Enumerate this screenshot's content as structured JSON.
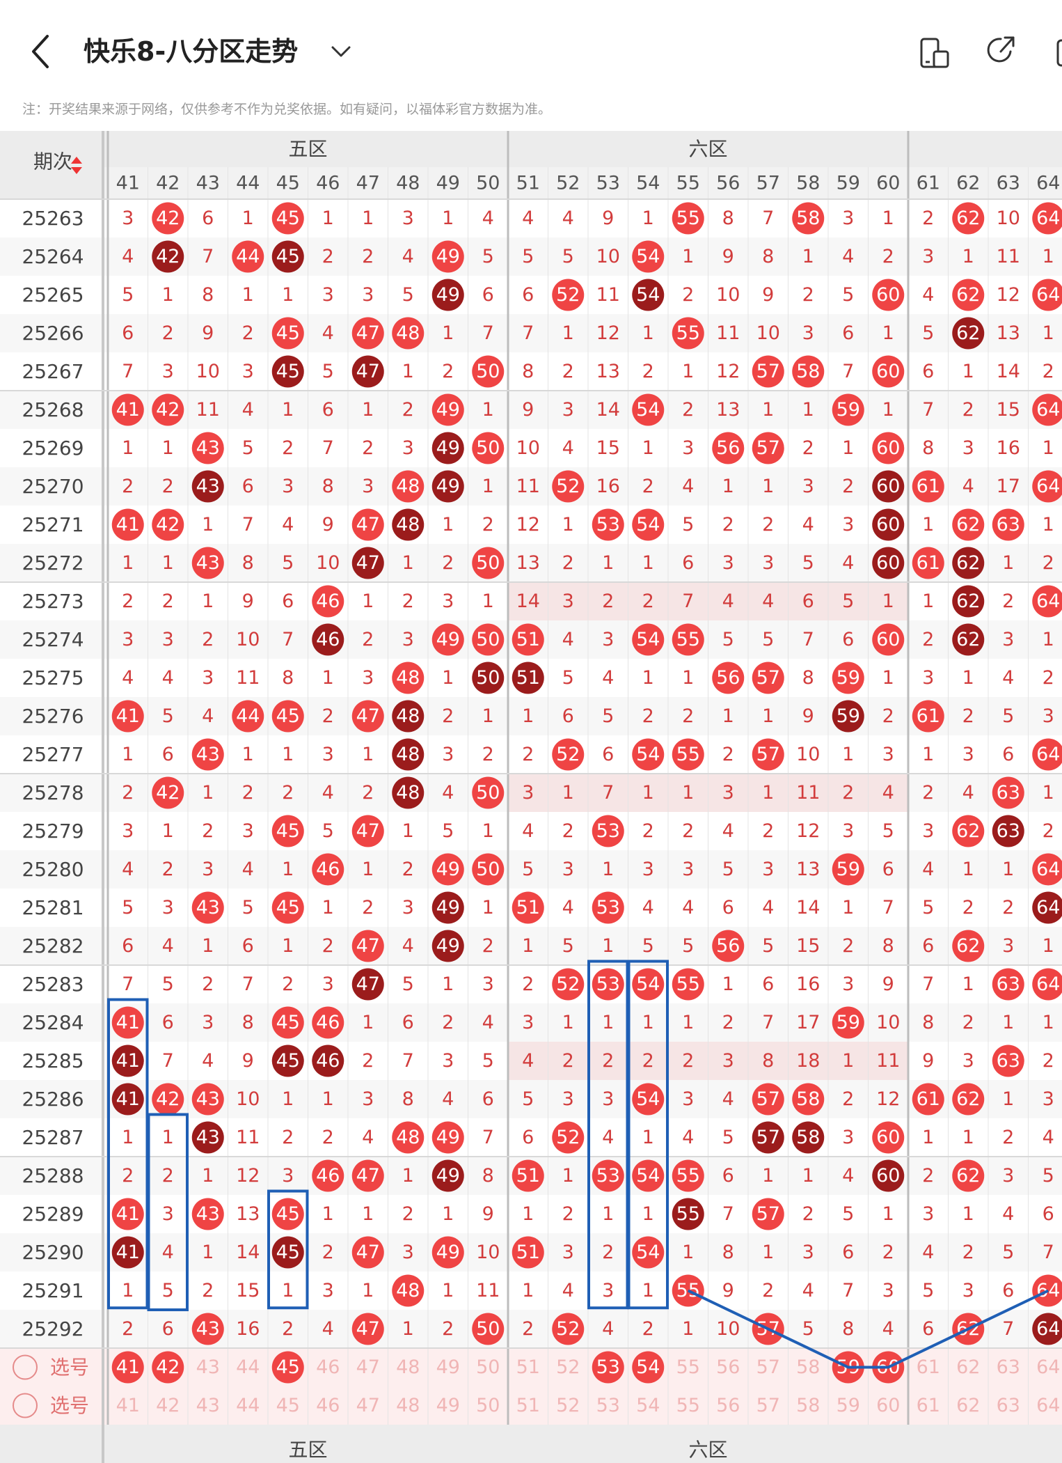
{
  "header": {
    "title": "快乐8-八分区走势",
    "note": "注：开奖结果来源于网络，仅供参考不作为兑奖依据。如有疑问，以福体彩官方数据为准。"
  },
  "table": {
    "period_label": "期次",
    "zones": [
      {
        "name": "五区",
        "start": 41
      },
      {
        "name": "六区",
        "start": 51
      },
      {
        "name": "",
        "start": 61
      }
    ],
    "columns": [
      41,
      42,
      43,
      44,
      45,
      46,
      47,
      48,
      49,
      50,
      51,
      52,
      53,
      54,
      55,
      56,
      57,
      58,
      59,
      60,
      61,
      62,
      63,
      64
    ],
    "rows": [
      {
        "p": "25263",
        "v": [
          3,
          42,
          6,
          1,
          45,
          1,
          1,
          3,
          1,
          4,
          4,
          4,
          9,
          1,
          55,
          8,
          7,
          58,
          3,
          1,
          2,
          62,
          10,
          64
        ]
      },
      {
        "p": "25264",
        "v": [
          4,
          42,
          7,
          44,
          45,
          2,
          2,
          4,
          49,
          5,
          5,
          5,
          10,
          54,
          1,
          9,
          8,
          1,
          4,
          2,
          3,
          1,
          11,
          1
        ]
      },
      {
        "p": "25265",
        "v": [
          5,
          1,
          8,
          1,
          1,
          3,
          3,
          5,
          49,
          6,
          6,
          52,
          11,
          54,
          2,
          10,
          9,
          2,
          5,
          60,
          4,
          62,
          12,
          64
        ]
      },
      {
        "p": "25266",
        "v": [
          6,
          2,
          9,
          2,
          45,
          4,
          47,
          48,
          1,
          7,
          7,
          1,
          12,
          1,
          55,
          11,
          10,
          3,
          6,
          1,
          5,
          62,
          13,
          1
        ]
      },
      {
        "p": "25267",
        "v": [
          7,
          3,
          10,
          3,
          45,
          5,
          47,
          1,
          2,
          50,
          8,
          2,
          13,
          2,
          1,
          12,
          57,
          58,
          7,
          60,
          6,
          1,
          14,
          2
        ]
      },
      {
        "p": "25268",
        "v": [
          41,
          42,
          11,
          4,
          1,
          6,
          1,
          2,
          49,
          1,
          9,
          3,
          14,
          54,
          2,
          13,
          1,
          1,
          59,
          1,
          7,
          2,
          15,
          64
        ]
      },
      {
        "p": "25269",
        "v": [
          1,
          1,
          43,
          5,
          2,
          7,
          2,
          3,
          49,
          50,
          10,
          4,
          15,
          1,
          3,
          56,
          57,
          2,
          1,
          60,
          8,
          3,
          16,
          1
        ]
      },
      {
        "p": "25270",
        "v": [
          2,
          2,
          43,
          6,
          3,
          8,
          3,
          48,
          49,
          1,
          11,
          52,
          16,
          2,
          4,
          1,
          1,
          3,
          2,
          60,
          61,
          4,
          17,
          64
        ]
      },
      {
        "p": "25271",
        "v": [
          41,
          42,
          1,
          7,
          4,
          9,
          47,
          48,
          1,
          2,
          12,
          1,
          53,
          54,
          5,
          2,
          2,
          4,
          3,
          60,
          1,
          62,
          63,
          1
        ]
      },
      {
        "p": "25272",
        "v": [
          1,
          1,
          43,
          8,
          5,
          10,
          47,
          1,
          2,
          50,
          13,
          2,
          1,
          1,
          6,
          3,
          3,
          5,
          4,
          60,
          61,
          62,
          1,
          2
        ]
      },
      {
        "p": "25273",
        "v": [
          2,
          2,
          1,
          9,
          6,
          46,
          1,
          2,
          3,
          1,
          14,
          3,
          2,
          2,
          7,
          4,
          4,
          6,
          5,
          1,
          1,
          62,
          2,
          64
        ]
      },
      {
        "p": "25274",
        "v": [
          3,
          3,
          2,
          10,
          7,
          46,
          2,
          3,
          49,
          50,
          51,
          4,
          3,
          54,
          55,
          5,
          5,
          7,
          6,
          60,
          2,
          62,
          3,
          1
        ]
      },
      {
        "p": "25275",
        "v": [
          4,
          4,
          3,
          11,
          8,
          1,
          3,
          48,
          1,
          50,
          51,
          5,
          4,
          1,
          1,
          56,
          57,
          8,
          59,
          1,
          3,
          1,
          4,
          2
        ]
      },
      {
        "p": "25276",
        "v": [
          41,
          5,
          4,
          44,
          45,
          2,
          47,
          48,
          2,
          1,
          1,
          6,
          5,
          2,
          2,
          1,
          1,
          9,
          59,
          2,
          61,
          2,
          5,
          3
        ]
      },
      {
        "p": "25277",
        "v": [
          1,
          6,
          43,
          1,
          1,
          3,
          1,
          48,
          3,
          2,
          2,
          52,
          6,
          54,
          55,
          2,
          57,
          10,
          1,
          3,
          1,
          3,
          6,
          64
        ]
      },
      {
        "p": "25278",
        "v": [
          2,
          42,
          1,
          2,
          2,
          4,
          2,
          48,
          4,
          50,
          3,
          1,
          7,
          1,
          1,
          3,
          1,
          11,
          2,
          4,
          2,
          4,
          63,
          1
        ]
      },
      {
        "p": "25279",
        "v": [
          3,
          1,
          2,
          3,
          45,
          5,
          47,
          1,
          5,
          1,
          4,
          2,
          53,
          2,
          2,
          4,
          2,
          12,
          3,
          5,
          3,
          62,
          63,
          2
        ]
      },
      {
        "p": "25280",
        "v": [
          4,
          2,
          3,
          4,
          1,
          46,
          1,
          2,
          49,
          50,
          5,
          3,
          1,
          3,
          3,
          5,
          3,
          13,
          59,
          6,
          4,
          1,
          1,
          64
        ]
      },
      {
        "p": "25281",
        "v": [
          5,
          3,
          43,
          5,
          45,
          1,
          2,
          3,
          49,
          1,
          51,
          4,
          53,
          4,
          4,
          6,
          4,
          14,
          1,
          7,
          5,
          2,
          2,
          64
        ]
      },
      {
        "p": "25282",
        "v": [
          6,
          4,
          1,
          6,
          1,
          2,
          47,
          4,
          49,
          2,
          1,
          5,
          1,
          5,
          5,
          56,
          5,
          15,
          2,
          8,
          6,
          62,
          3,
          1
        ]
      },
      {
        "p": "25283",
        "v": [
          7,
          5,
          2,
          7,
          2,
          3,
          47,
          5,
          1,
          3,
          2,
          52,
          53,
          54,
          55,
          1,
          6,
          16,
          3,
          9,
          7,
          1,
          63,
          64
        ]
      },
      {
        "p": "25284",
        "v": [
          41,
          6,
          3,
          8,
          45,
          46,
          1,
          6,
          2,
          4,
          3,
          1,
          1,
          1,
          1,
          2,
          7,
          17,
          59,
          10,
          8,
          2,
          1,
          1
        ]
      },
      {
        "p": "25285",
        "v": [
          41,
          7,
          4,
          9,
          45,
          46,
          2,
          7,
          3,
          5,
          4,
          2,
          2,
          2,
          2,
          3,
          8,
          18,
          1,
          11,
          9,
          3,
          63,
          2
        ]
      },
      {
        "p": "25286",
        "v": [
          41,
          42,
          43,
          10,
          1,
          1,
          3,
          8,
          4,
          6,
          5,
          3,
          3,
          54,
          3,
          4,
          57,
          58,
          2,
          12,
          61,
          62,
          1,
          3
        ]
      },
      {
        "p": "25287",
        "v": [
          1,
          1,
          43,
          11,
          2,
          2,
          4,
          48,
          49,
          7,
          6,
          52,
          4,
          1,
          4,
          5,
          57,
          58,
          3,
          60,
          1,
          1,
          2,
          4
        ]
      },
      {
        "p": "25288",
        "v": [
          2,
          2,
          1,
          12,
          3,
          46,
          47,
          1,
          49,
          8,
          51,
          1,
          53,
          54,
          55,
          6,
          1,
          1,
          4,
          60,
          2,
          62,
          3,
          5
        ]
      },
      {
        "p": "25289",
        "v": [
          41,
          3,
          43,
          13,
          45,
          1,
          1,
          2,
          1,
          9,
          1,
          2,
          1,
          1,
          55,
          7,
          57,
          2,
          5,
          1,
          3,
          1,
          4,
          6
        ]
      },
      {
        "p": "25290",
        "v": [
          41,
          4,
          1,
          14,
          45,
          2,
          47,
          3,
          49,
          10,
          51,
          3,
          2,
          54,
          1,
          8,
          1,
          3,
          6,
          2,
          4,
          2,
          5,
          7
        ]
      },
      {
        "p": "25291",
        "v": [
          1,
          5,
          2,
          15,
          1,
          3,
          1,
          48,
          1,
          11,
          1,
          4,
          3,
          1,
          55,
          9,
          2,
          4,
          7,
          3,
          5,
          3,
          6,
          64
        ]
      },
      {
        "p": "25292",
        "v": [
          2,
          6,
          43,
          16,
          2,
          4,
          47,
          1,
          2,
          50,
          2,
          52,
          4,
          2,
          1,
          10,
          57,
          5,
          8,
          4,
          6,
          62,
          7,
          64
        ]
      }
    ],
    "select_rows": [
      {
        "label": "选号",
        "selected": [
          41,
          42,
          45,
          53,
          54,
          59,
          60
        ]
      },
      {
        "label": "选号",
        "selected": []
      }
    ],
    "colors": {
      "hit": "#ef4444",
      "repeat": "#9b1c1c",
      "miss_text": "#d23c3c",
      "band": "#f6e5e5",
      "box": "#1f5fb5",
      "line": "#1f5fb5",
      "select_bg": "#fdeeee",
      "select_text": "#f0b5b5"
    }
  }
}
